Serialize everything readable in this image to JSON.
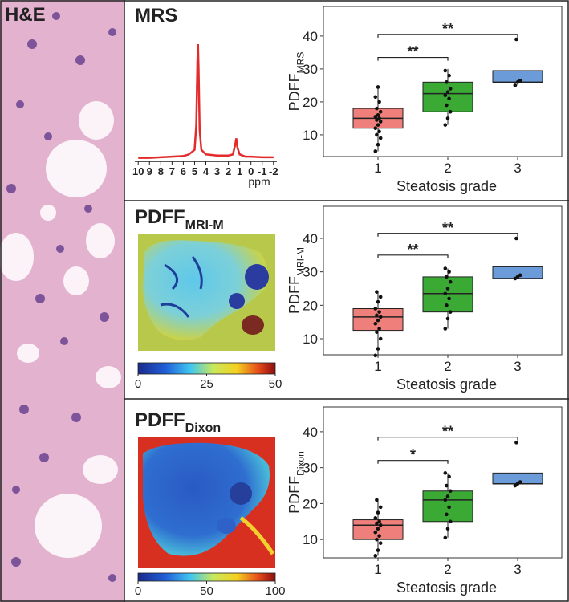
{
  "figure": {
    "label": "H&E"
  },
  "chart_data": [
    {
      "type": "line",
      "title": "MRS",
      "xlabel": "ppm",
      "color": "#e32b2b",
      "x": [
        10,
        9,
        8,
        7,
        6,
        5.5,
        5.0,
        4.85,
        4.75,
        4.7,
        4.65,
        4.55,
        4.4,
        4,
        3,
        2,
        1.6,
        1.4,
        1.3,
        1.2,
        1.0,
        0.5,
        0,
        -1,
        -2
      ],
      "values": [
        1,
        1,
        1.5,
        2,
        2.5,
        4,
        8,
        30,
        85,
        100,
        80,
        25,
        8,
        4,
        3,
        3,
        4,
        12,
        18,
        10,
        4,
        2,
        2,
        1.5,
        1.5
      ],
      "xlim": [
        10.3,
        -2.3
      ],
      "xticks": [
        10,
        9,
        8,
        7,
        6,
        5,
        4,
        3,
        2,
        1,
        0,
        -1,
        -2
      ]
    },
    {
      "type": "box",
      "ylabel": "PDFF",
      "ylabel_sub": "MRS",
      "xlabel": "Steatosis grade",
      "categories": [
        "1",
        "2",
        "3"
      ],
      "colors": [
        "#ef7f7a",
        "#3aaa35",
        "#6b9bd8"
      ],
      "ylim": [
        3.4,
        49
      ],
      "yticks": [
        10,
        20,
        30,
        40
      ],
      "boxes": [
        {
          "whislo": 5,
          "q1": 12,
          "med": 15,
          "q3": 18,
          "whishi": 24.5,
          "points": [
            5,
            7,
            9,
            10,
            11,
            12,
            13,
            14,
            14.5,
            15,
            15.5,
            16,
            17,
            18,
            20,
            21.5,
            24.5
          ]
        },
        {
          "whislo": 13,
          "q1": 17,
          "med": 22.5,
          "q3": 26,
          "whishi": 30,
          "points": [
            13,
            15,
            17,
            19,
            21,
            22,
            23,
            24,
            26,
            28,
            29.5
          ]
        },
        {
          "whislo": 25,
          "q1": 26,
          "med": 26,
          "q3": 29.5,
          "whishi": 29.5,
          "points": [
            25,
            26,
            26.5,
            39
          ]
        }
      ],
      "significance": [
        {
          "from": 0,
          "to": 1,
          "y": 33.5,
          "label": "**"
        },
        {
          "from": 0,
          "to": 2,
          "y": 40.5,
          "label": "**"
        }
      ]
    },
    {
      "type": "colorbar",
      "title": "PDFF",
      "title_sub": "MRI-M",
      "xlim": [
        0,
        50
      ],
      "xticks": [
        0,
        25,
        50
      ]
    },
    {
      "type": "box",
      "ylabel": "PDFF",
      "ylabel_sub": "MRI-M",
      "xlabel": "Steatosis grade",
      "categories": [
        "1",
        "2",
        "3"
      ],
      "colors": [
        "#ef7f7a",
        "#3aaa35",
        "#6b9bd8"
      ],
      "ylim": [
        5.2,
        49.6
      ],
      "yticks": [
        10,
        20,
        30,
        40
      ],
      "boxes": [
        {
          "whislo": 5,
          "q1": 12.5,
          "med": 16.5,
          "q3": 19,
          "whishi": 24,
          "points": [
            5,
            7,
            10,
            12,
            13,
            14.5,
            15.5,
            16.5,
            17,
            18,
            19,
            21,
            22.5,
            24
          ]
        },
        {
          "whislo": 13,
          "q1": 18,
          "med": 23.5,
          "q3": 28.5,
          "whishi": 31,
          "points": [
            13,
            16,
            18,
            20,
            22,
            23.5,
            25,
            27,
            28.5,
            30,
            31
          ]
        },
        {
          "whislo": 28,
          "q1": 28,
          "med": 28,
          "q3": 31.5,
          "whishi": 31.5,
          "points": [
            28,
            28.5,
            29,
            40
          ]
        }
      ],
      "significance": [
        {
          "from": 0,
          "to": 1,
          "y": 35,
          "label": "**"
        },
        {
          "from": 0,
          "to": 2,
          "y": 41.5,
          "label": "**"
        }
      ]
    },
    {
      "type": "colorbar",
      "title": "PDFF",
      "title_sub": "Dixon",
      "xlim": [
        0,
        100
      ],
      "xticks": [
        0,
        50,
        100
      ]
    },
    {
      "type": "box",
      "ylabel": "PDFF",
      "ylabel_sub": "Dixon",
      "xlabel": "Steatosis grade",
      "categories": [
        "1",
        "2",
        "3"
      ],
      "colors": [
        "#ef7f7a",
        "#3aaa35",
        "#6b9bd8"
      ],
      "ylim": [
        4.9,
        46.9
      ],
      "yticks": [
        10,
        20,
        30,
        40
      ],
      "boxes": [
        {
          "whislo": 5.5,
          "q1": 10,
          "med": 14,
          "q3": 15.5,
          "whishi": 21,
          "points": [
            5.5,
            7,
            9,
            10,
            11,
            12,
            13,
            14,
            14.5,
            15,
            16,
            17.5,
            19,
            21
          ]
        },
        {
          "whislo": 10.5,
          "q1": 15,
          "med": 21,
          "q3": 23.5,
          "whishi": 28.5,
          "points": [
            10.5,
            13,
            15,
            17,
            19,
            21,
            22,
            23.5,
            25,
            27.5,
            28.5
          ]
        },
        {
          "whislo": 25.5,
          "q1": 25.5,
          "med": 25.5,
          "q3": 28.5,
          "whishi": 28.5,
          "points": [
            25,
            25.5,
            26,
            37
          ]
        }
      ],
      "significance": [
        {
          "from": 0,
          "to": 1,
          "y": 32,
          "label": "*"
        },
        {
          "from": 0,
          "to": 2,
          "y": 38.5,
          "label": "**"
        }
      ]
    }
  ]
}
